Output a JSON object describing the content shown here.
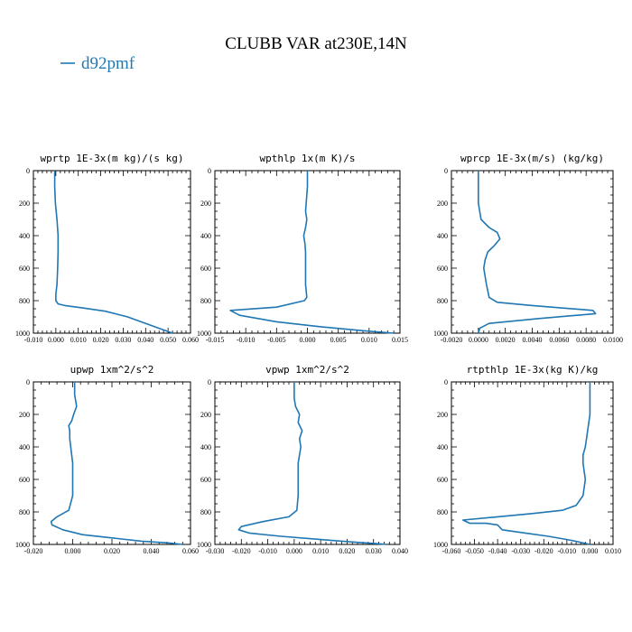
{
  "figure": {
    "title": "CLUBB VAR at230E,14N",
    "legend": [
      {
        "label": "d92pmf",
        "color": "#1f77b4"
      }
    ]
  },
  "chart_data": [
    {
      "type": "line",
      "title": "wprtp  1E-3x(m kg)/(s kg)",
      "xlim": [
        -0.01,
        0.06
      ],
      "ylim": [
        0,
        1000
      ],
      "y_inverted": true,
      "xticks": [
        "-0.010",
        "0.000",
        "0.010",
        "0.020",
        "0.030",
        "0.040",
        "0.050",
        "0.060"
      ],
      "xtick_values": [
        -0.01,
        0.0,
        0.01,
        0.02,
        0.03,
        0.04,
        0.05,
        0.06
      ],
      "yticks": [
        "0",
        "200",
        "400",
        "600",
        "800",
        "1000"
      ],
      "ytick_values": [
        0,
        200,
        400,
        600,
        800,
        1000
      ],
      "series": [
        {
          "name": "d92pmf",
          "x": [
            -0.0005,
            -0.0005,
            -0.0002,
            0.0005,
            0.001,
            0.001,
            0.0008,
            0.0005,
            0.0,
            0.0,
            0.001,
            0.004,
            0.012,
            0.022,
            0.032,
            0.04,
            0.046,
            0.052
          ],
          "y": [
            0,
            100,
            200,
            300,
            400,
            500,
            600,
            700,
            760,
            800,
            820,
            830,
            845,
            865,
            900,
            940,
            970,
            1000
          ]
        }
      ]
    },
    {
      "type": "line",
      "title": "wpthlp  1x(m K)/s",
      "xlim": [
        -0.015,
        0.015
      ],
      "ylim": [
        0,
        1000
      ],
      "y_inverted": true,
      "xticks": [
        "-0.015",
        "-0.010",
        "-0.005",
        "0.000",
        "0.005",
        "0.010",
        "0.015"
      ],
      "xtick_values": [
        -0.015,
        -0.01,
        -0.005,
        0.0,
        0.005,
        0.01,
        0.015
      ],
      "yticks": [
        "0",
        "200",
        "400",
        "600",
        "800",
        "1000"
      ],
      "ytick_values": [
        0,
        200,
        400,
        600,
        800,
        1000
      ],
      "series": [
        {
          "name": "d92pmf",
          "x": [
            0.0,
            0.0,
            -0.0002,
            -0.0003,
            -0.0001,
            -0.0003,
            -0.0006,
            -0.0004,
            -0.0003,
            -0.0003,
            -0.0003,
            -0.0001,
            -0.0005,
            -0.005,
            -0.0125,
            -0.011,
            -0.005,
            0.002,
            0.009,
            0.014
          ],
          "y": [
            0,
            100,
            200,
            250,
            300,
            350,
            400,
            450,
            500,
            600,
            700,
            780,
            800,
            840,
            860,
            890,
            930,
            960,
            985,
            1000
          ]
        }
      ]
    },
    {
      "type": "line",
      "title": "wprcp  1E-3x(m/s) (kg/kg)",
      "xlim": [
        -0.002,
        0.01
      ],
      "ylim": [
        0,
        1000
      ],
      "y_inverted": true,
      "xticks": [
        "-0.0020",
        "0.0000",
        "0.0020",
        "0.0040",
        "0.0060",
        "0.0080",
        "0.0100"
      ],
      "xtick_values": [
        -0.002,
        0.0,
        0.002,
        0.004,
        0.006,
        0.008,
        0.01
      ],
      "yticks": [
        "0",
        "200",
        "400",
        "600",
        "800",
        "1000"
      ],
      "ytick_values": [
        0,
        200,
        400,
        600,
        800,
        1000
      ],
      "series": [
        {
          "name": "d92pmf",
          "x": [
            0.0,
            0.0,
            0.0,
            0.0002,
            0.0008,
            0.0014,
            0.0016,
            0.0012,
            0.0007,
            0.0005,
            0.0004,
            0.0006,
            0.0008,
            0.0014,
            0.004,
            0.0085,
            0.0087,
            0.0045,
            0.0008,
            0.0001,
            0.0
          ],
          "y": [
            0,
            100,
            200,
            300,
            350,
            380,
            420,
            460,
            500,
            550,
            600,
            700,
            780,
            810,
            830,
            860,
            880,
            910,
            940,
            970,
            1000
          ]
        }
      ]
    },
    {
      "type": "line",
      "title": "upwp  1xm^2/s^2",
      "xlim": [
        -0.02,
        0.06
      ],
      "ylim": [
        0,
        1000
      ],
      "y_inverted": true,
      "xticks": [
        "-0.020",
        "0.000",
        "0.020",
        "0.040",
        "0.060"
      ],
      "xtick_values": [
        -0.02,
        0.0,
        0.02,
        0.04,
        0.06
      ],
      "yticks": [
        "0",
        "200",
        "400",
        "600",
        "800",
        "1000"
      ],
      "ytick_values": [
        0,
        200,
        400,
        600,
        800,
        1000
      ],
      "series": [
        {
          "name": "d92pmf",
          "x": [
            0.001,
            0.001,
            0.002,
            0.0005,
            -0.0005,
            -0.002,
            -0.0015,
            -0.0015,
            -0.001,
            -0.0005,
            0.0,
            0.0,
            0.0,
            -0.002,
            -0.008,
            -0.011,
            -0.0105,
            -0.005,
            0.005,
            0.02,
            0.035,
            0.048,
            0.056
          ],
          "y": [
            0,
            80,
            150,
            200,
            240,
            270,
            300,
            350,
            400,
            450,
            500,
            600,
            700,
            790,
            830,
            860,
            880,
            910,
            940,
            960,
            980,
            990,
            1000
          ]
        }
      ]
    },
    {
      "type": "line",
      "title": "vpwp  1xm^2/s^2",
      "xlim": [
        -0.03,
        0.04
      ],
      "ylim": [
        0,
        1000
      ],
      "y_inverted": true,
      "xticks": [
        "-0.030",
        "-0.020",
        "-0.010",
        "0.000",
        "0.010",
        "0.020",
        "0.030",
        "0.040"
      ],
      "xtick_values": [
        -0.03,
        -0.02,
        -0.01,
        0.0,
        0.01,
        0.02,
        0.03,
        0.04
      ],
      "yticks": [
        "0",
        "200",
        "400",
        "600",
        "800",
        "1000"
      ],
      "ytick_values": [
        0,
        200,
        400,
        600,
        800,
        1000
      ],
      "series": [
        {
          "name": "d92pmf",
          "x": [
            0.0,
            0.0,
            0.0005,
            0.002,
            0.0015,
            0.003,
            0.002,
            0.0025,
            0.002,
            0.0015,
            0.0015,
            0.0015,
            0.001,
            -0.002,
            -0.012,
            -0.02,
            -0.021,
            -0.017,
            -0.005,
            0.01,
            0.022,
            0.031,
            0.035
          ],
          "y": [
            0,
            100,
            150,
            200,
            250,
            300,
            350,
            400,
            450,
            500,
            600,
            700,
            790,
            830,
            860,
            890,
            910,
            930,
            950,
            970,
            985,
            995,
            1000
          ]
        }
      ]
    },
    {
      "type": "line",
      "title": "rtpthlp  1E-3x(kg K)/kg",
      "xlim": [
        -0.06,
        0.01
      ],
      "ylim": [
        0,
        1000
      ],
      "y_inverted": true,
      "xticks": [
        "-0.060",
        "-0.050",
        "-0.040",
        "-0.030",
        "-0.020",
        "-0.010",
        "0.000",
        "0.010"
      ],
      "xtick_values": [
        -0.06,
        -0.05,
        -0.04,
        -0.03,
        -0.02,
        -0.01,
        0.0,
        0.01
      ],
      "yticks": [
        "0",
        "200",
        "400",
        "600",
        "800",
        "1000"
      ],
      "ytick_values": [
        0,
        200,
        400,
        600,
        800,
        1000
      ],
      "series": [
        {
          "name": "d92pmf",
          "x": [
            0.0,
            0.0,
            -0.001,
            -0.002,
            -0.003,
            -0.003,
            -0.002,
            -0.003,
            -0.006,
            -0.012,
            -0.025,
            -0.04,
            -0.055,
            -0.052,
            -0.045,
            -0.04,
            -0.038,
            -0.028,
            -0.018,
            -0.008,
            0.0
          ],
          "y": [
            0,
            200,
            300,
            400,
            450,
            500,
            600,
            700,
            760,
            790,
            810,
            830,
            850,
            870,
            870,
            880,
            910,
            930,
            950,
            975,
            1000
          ]
        }
      ]
    }
  ]
}
